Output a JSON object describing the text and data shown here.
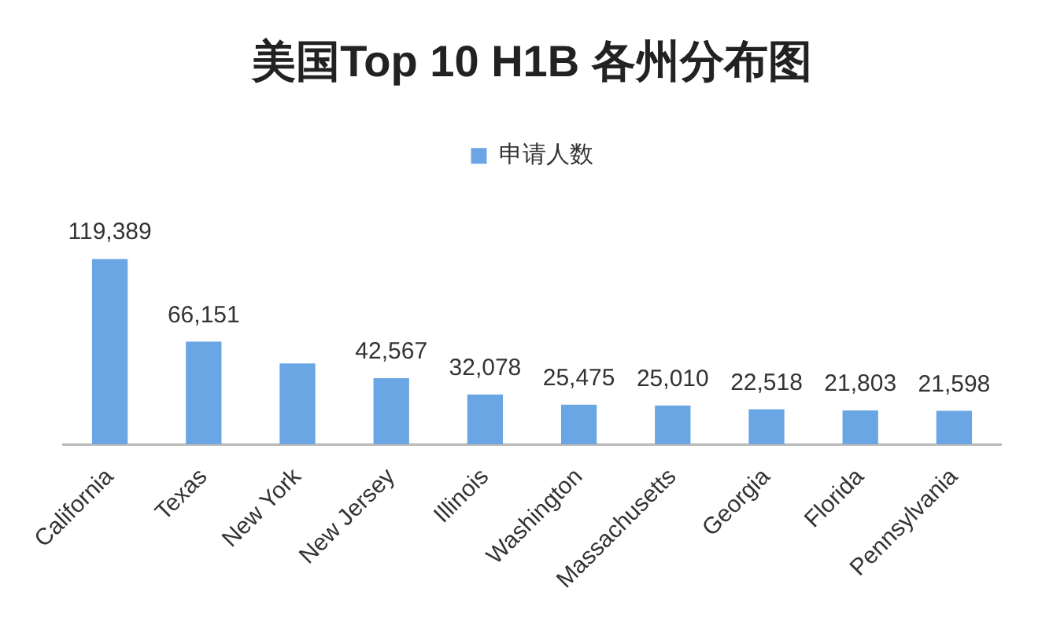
{
  "chart_data": {
    "type": "bar",
    "title": "美国Top 10 H1B 各州分布图",
    "legend": "top",
    "categories": [
      "California",
      "Texas",
      "New York",
      "New Jersey",
      "Illinois",
      "Washington",
      "Massachusetts",
      "Georgia",
      "Florida",
      "Pennsylvania"
    ],
    "series": [
      {
        "name": "申请人数",
        "color": "#6aa6e3",
        "values": [
          119389,
          66151,
          52000,
          42567,
          32078,
          25475,
          25010,
          22518,
          21803,
          21598
        ],
        "value_labels": [
          "119,389",
          "66,151",
          null,
          "42,567",
          "32,078",
          "25,475",
          "25,010",
          "22,518",
          "21,803",
          "21,598"
        ]
      }
    ]
  }
}
